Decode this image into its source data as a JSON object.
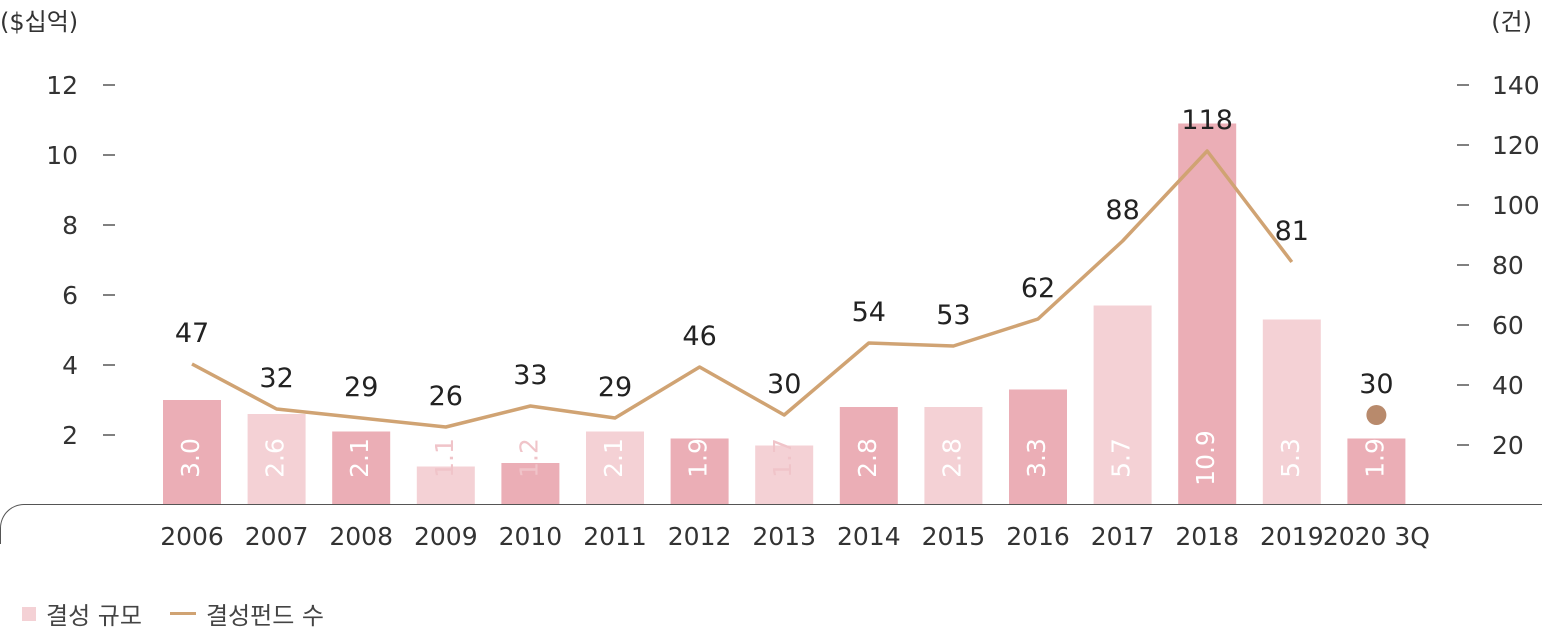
{
  "units": {
    "left": "($십억)",
    "right": "(건)"
  },
  "legend": {
    "bar_label": "결성 규모",
    "line_label": "결성펀드 수"
  },
  "colors": {
    "bar_dark": "#ebaeb6",
    "bar_light": "#f4d1d5",
    "line": "#d0a373",
    "dot": "#b88a6c",
    "label_light": "#f0c4c9"
  },
  "chart_data": {
    "type": "bar",
    "categories": [
      "2006",
      "2007",
      "2008",
      "2009",
      "2010",
      "2011",
      "2012",
      "2013",
      "2014",
      "2015",
      "2016",
      "2017",
      "2018",
      "2019",
      "2020 3Q"
    ],
    "series": [
      {
        "name": "결성 규모",
        "type": "bar",
        "axis": "left",
        "values": [
          3.0,
          2.6,
          2.1,
          1.1,
          1.2,
          2.1,
          1.9,
          1.7,
          2.8,
          2.8,
          3.3,
          5.7,
          10.9,
          5.3,
          1.9
        ],
        "labels": [
          "3.0",
          "2.6",
          "2.1",
          "1.1",
          "1.2",
          "2.1",
          "1.9",
          "1.7",
          "2.8",
          "2.8",
          "3.3",
          "5.7",
          "10.9",
          "5.3",
          "1.9"
        ],
        "shades": [
          "dark",
          "light",
          "dark",
          "light",
          "dark",
          "light",
          "dark",
          "light",
          "dark",
          "light",
          "dark",
          "light",
          "dark",
          "light",
          "dark"
        ]
      },
      {
        "name": "결성펀드 수",
        "type": "line",
        "axis": "right",
        "values": [
          47,
          32,
          29,
          26,
          33,
          29,
          46,
          30,
          54,
          53,
          62,
          88,
          118,
          81,
          30
        ],
        "labels": [
          "47",
          "32",
          "29",
          "26",
          "33",
          "29",
          "46",
          "30",
          "54",
          "53",
          "62",
          "88",
          "118",
          "81",
          "30"
        ],
        "last_point_style": "dot"
      }
    ],
    "y_left": {
      "ticks": [
        "2",
        "4",
        "6",
        "8",
        "10",
        "12"
      ],
      "range": [
        0,
        12
      ]
    },
    "y_right": {
      "ticks": [
        "20",
        "40",
        "60",
        "80",
        "100",
        "120",
        "140"
      ],
      "range": [
        0,
        140
      ]
    },
    "title": "",
    "xlabel": "",
    "grid": false,
    "legend_position": "bottom-left"
  }
}
